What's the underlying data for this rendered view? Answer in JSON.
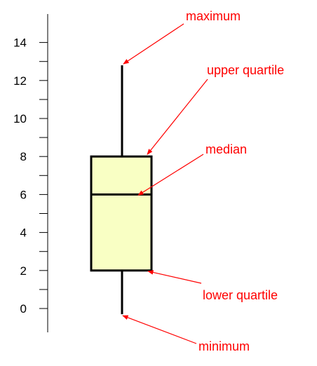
{
  "chart_data": {
    "type": "boxplot",
    "orientation": "vertical",
    "title": "",
    "xlabel": "",
    "ylabel": "",
    "ylim": [
      -1.2,
      16
    ],
    "y_ticks": [
      0,
      2,
      4,
      6,
      8,
      10,
      12,
      14
    ],
    "y_tick_labels": [
      "0",
      "2",
      "4",
      "6",
      "8",
      "10",
      "12",
      "14"
    ],
    "minor_ticks": true,
    "grid": false,
    "stats": {
      "minimum": -0.3,
      "lower_quartile": 2,
      "median": 6,
      "upper_quartile": 8,
      "maximum": 12.8
    },
    "annotations": [
      {
        "key": "maximum",
        "text": "maximum"
      },
      {
        "key": "upper_quartile",
        "text": "upper quartile"
      },
      {
        "key": "median",
        "text": "median"
      },
      {
        "key": "lower_quartile",
        "text": "lower quartile"
      },
      {
        "key": "minimum",
        "text": "minimum"
      }
    ],
    "colors": {
      "box_fill": "#f9ffc4",
      "box_stroke": "#000000",
      "axis": "#000000",
      "annotation": "#ff0000"
    }
  }
}
